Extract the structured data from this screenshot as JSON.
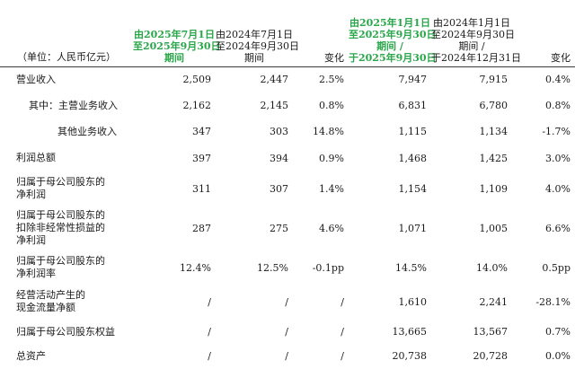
{
  "table": {
    "headers": {
      "unit": "（单位：人民币亿元）",
      "col1": [
        "由2025年7月1日",
        "至2025年9月30日",
        "期间"
      ],
      "col2": [
        "由2024年7月1日",
        "至2024年9月30日",
        "期间"
      ],
      "col3": [
        "变化"
      ],
      "col4": [
        "由2025年1月1日",
        "至2025年9月30日",
        "期间 /",
        "于2025年9月30日"
      ],
      "col5": [
        "由2024年1月1日",
        "至2024年9月30日",
        "期间 /",
        "于2024年12月31日"
      ],
      "col6": [
        "变化"
      ]
    },
    "rows": [
      {
        "label": [
          "营业收入"
        ],
        "v": [
          "2,509",
          "2,447",
          "2.5%",
          "7,947",
          "7,915",
          "0.4%"
        ]
      },
      {
        "label": [
          "其中：主营业务收入"
        ],
        "v": [
          "2,162",
          "2,145",
          "0.8%",
          "6,831",
          "6,780",
          "0.8%"
        ]
      },
      {
        "label": [
          "其他业务收入"
        ],
        "v": [
          "347",
          "303",
          "14.8%",
          "1,115",
          "1,134",
          "-1.7%"
        ]
      },
      {
        "label": [
          "利润总额"
        ],
        "v": [
          "397",
          "394",
          "0.9%",
          "1,468",
          "1,425",
          "3.0%"
        ]
      },
      {
        "label": [
          "归属于母公司股东的",
          "净利润"
        ],
        "v": [
          "311",
          "307",
          "1.4%",
          "1,154",
          "1,109",
          "4.0%"
        ]
      },
      {
        "label": [
          "归属于母公司股东的",
          "扣除非经常性损益的",
          "净利润"
        ],
        "v": [
          "287",
          "275",
          "4.6%",
          "1,071",
          "1,005",
          "6.6%"
        ]
      },
      {
        "label": [
          "归属于母公司股东的",
          "净利润率"
        ],
        "v": [
          "12.4%",
          "12.5%",
          "-0.1pp",
          "14.5%",
          "14.0%",
          "0.5pp"
        ]
      },
      {
        "label": [
          "经营活动产生的",
          "现金流量净额"
        ],
        "v": [
          "/",
          "/",
          "/",
          "1,610",
          "2,241",
          "-28.1%"
        ]
      },
      {
        "label": [
          "归属于母公司股东权益"
        ],
        "v": [
          "/",
          "/",
          "/",
          "13,665",
          "13,567",
          "0.7%"
        ]
      },
      {
        "label": [
          "总资产"
        ],
        "v": [
          "/",
          "/",
          "/",
          "20,738",
          "20,728",
          "0.0%"
        ]
      }
    ]
  }
}
